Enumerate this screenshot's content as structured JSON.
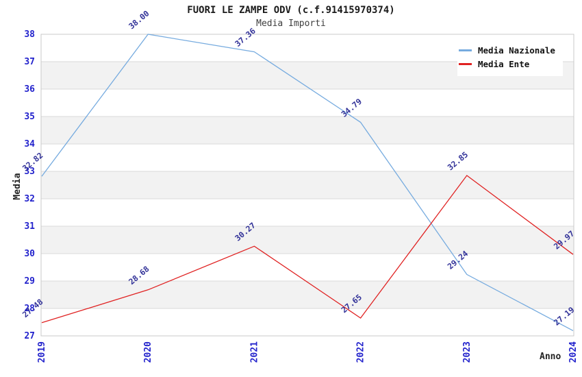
{
  "chart_data": {
    "type": "line",
    "title": "FUORI LE ZAMPE ODV (c.f.91415970374)",
    "subtitle": "Media Importi",
    "xlabel": "Anno",
    "ylabel": "Media",
    "categories": [
      "2019",
      "2020",
      "2021",
      "2022",
      "2023",
      "2024"
    ],
    "series": [
      {
        "name": "Media Nazionale",
        "color": "#76abdf",
        "values": [
          32.82,
          38.0,
          37.36,
          34.79,
          29.24,
          27.19
        ]
      },
      {
        "name": "Media Ente",
        "color": "#e02222",
        "values": [
          27.48,
          28.68,
          30.27,
          27.65,
          32.85,
          29.97
        ]
      }
    ],
    "ylim": [
      27,
      38
    ],
    "ytick_step": 1,
    "grid": true,
    "legend_position": "top-right",
    "colors": {
      "band": "#f2f2f2",
      "grid": "#d9d9d9",
      "frame": "#c9c9c9",
      "tick_label": "#2222cc",
      "point_label": "#333399"
    }
  }
}
